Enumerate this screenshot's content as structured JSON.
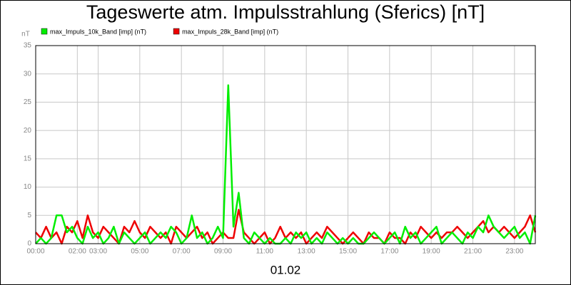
{
  "chart_data": {
    "type": "line",
    "title": "Tageswerte atm. Impulsstrahlung (Sferics) [nT]",
    "y_label": "nT",
    "x_label": "01.02",
    "x": [
      0,
      0.25,
      0.5,
      0.75,
      1,
      1.25,
      1.5,
      1.75,
      2,
      2.25,
      2.5,
      2.75,
      3,
      3.25,
      3.5,
      3.75,
      4,
      4.25,
      4.5,
      4.75,
      5,
      5.25,
      5.5,
      5.75,
      6,
      6.25,
      6.5,
      6.75,
      7,
      7.25,
      7.5,
      7.75,
      8,
      8.25,
      8.5,
      8.75,
      9,
      9.25,
      9.5,
      9.75,
      10,
      10.25,
      10.5,
      10.75,
      11,
      11.25,
      11.5,
      11.75,
      12,
      12.25,
      12.5,
      12.75,
      13,
      13.25,
      13.5,
      13.75,
      14,
      14.25,
      14.5,
      14.75,
      15,
      15.25,
      15.5,
      15.75,
      16,
      16.25,
      16.5,
      16.75,
      17,
      17.25,
      17.5,
      17.75,
      18,
      18.25,
      18.5,
      18.75,
      19,
      19.25,
      19.5,
      19.75,
      20,
      20.25,
      20.5,
      20.75,
      21,
      21.25,
      21.5,
      21.75,
      22,
      22.25,
      22.5,
      22.75,
      23,
      23.25,
      23.5,
      23.75,
      24
    ],
    "series": [
      {
        "name": "max_Impuls_10k_Band [imp] (nT)",
        "color": "#00ee00",
        "values": [
          0,
          1,
          0,
          1,
          5,
          5,
          2,
          3,
          1,
          0,
          3,
          1,
          2,
          0,
          1,
          3,
          0,
          2,
          1,
          0,
          1,
          2,
          0,
          1,
          2,
          1,
          3,
          2,
          0,
          1,
          5,
          1,
          2,
          0,
          1,
          3,
          1,
          28,
          3,
          9,
          1,
          0,
          2,
          1,
          0,
          1,
          0,
          0,
          1,
          0,
          2,
          1,
          2,
          0,
          1,
          0,
          2,
          1,
          0,
          1,
          0,
          1,
          0,
          0,
          1,
          2,
          1,
          0,
          1,
          2,
          0,
          3,
          1,
          2,
          0,
          1,
          2,
          3,
          0,
          1,
          2,
          1,
          0,
          2,
          1,
          3,
          2,
          5,
          3,
          2,
          1,
          2,
          3,
          1,
          2,
          0,
          5
        ]
      },
      {
        "name": "max_Impuls_28k_Band [imp] (nT)",
        "color": "#ee0000",
        "values": [
          2,
          1,
          3,
          1,
          2,
          0,
          3,
          2,
          4,
          1,
          5,
          2,
          1,
          3,
          2,
          1,
          0,
          3,
          2,
          4,
          2,
          1,
          3,
          2,
          1,
          2,
          0,
          3,
          2,
          1,
          2,
          3,
          1,
          2,
          0,
          1,
          2,
          1,
          1,
          6,
          2,
          1,
          0,
          1,
          2,
          0,
          1,
          3,
          1,
          2,
          1,
          2,
          0,
          1,
          2,
          1,
          3,
          2,
          1,
          0,
          1,
          2,
          1,
          0,
          2,
          1,
          1,
          0,
          2,
          1,
          1,
          0,
          2,
          1,
          3,
          2,
          1,
          2,
          1,
          2,
          2,
          3,
          2,
          1,
          2,
          3,
          4,
          2,
          3,
          2,
          3,
          2,
          1,
          2,
          3,
          5,
          2
        ]
      }
    ],
    "xlim": [
      0,
      24
    ],
    "xticks": [
      {
        "value": 0,
        "label": "00:00"
      },
      {
        "value": 2,
        "label": "02:00"
      },
      {
        "value": 3,
        "label": "03:00"
      },
      {
        "value": 5,
        "label": "05:00"
      },
      {
        "value": 7,
        "label": "07:00"
      },
      {
        "value": 9,
        "label": "09:00"
      },
      {
        "value": 11,
        "label": "11:00"
      },
      {
        "value": 13,
        "label": "13:00"
      },
      {
        "value": 15,
        "label": "15:00"
      },
      {
        "value": 17,
        "label": "17:00"
      },
      {
        "value": 19,
        "label": "19:00"
      },
      {
        "value": 21,
        "label": "21:00"
      },
      {
        "value": 23,
        "label": "23:00"
      }
    ],
    "ylim": [
      0,
      35
    ],
    "yticks": [
      0,
      5,
      10,
      15,
      20,
      25,
      30,
      35
    ],
    "grid": true
  }
}
